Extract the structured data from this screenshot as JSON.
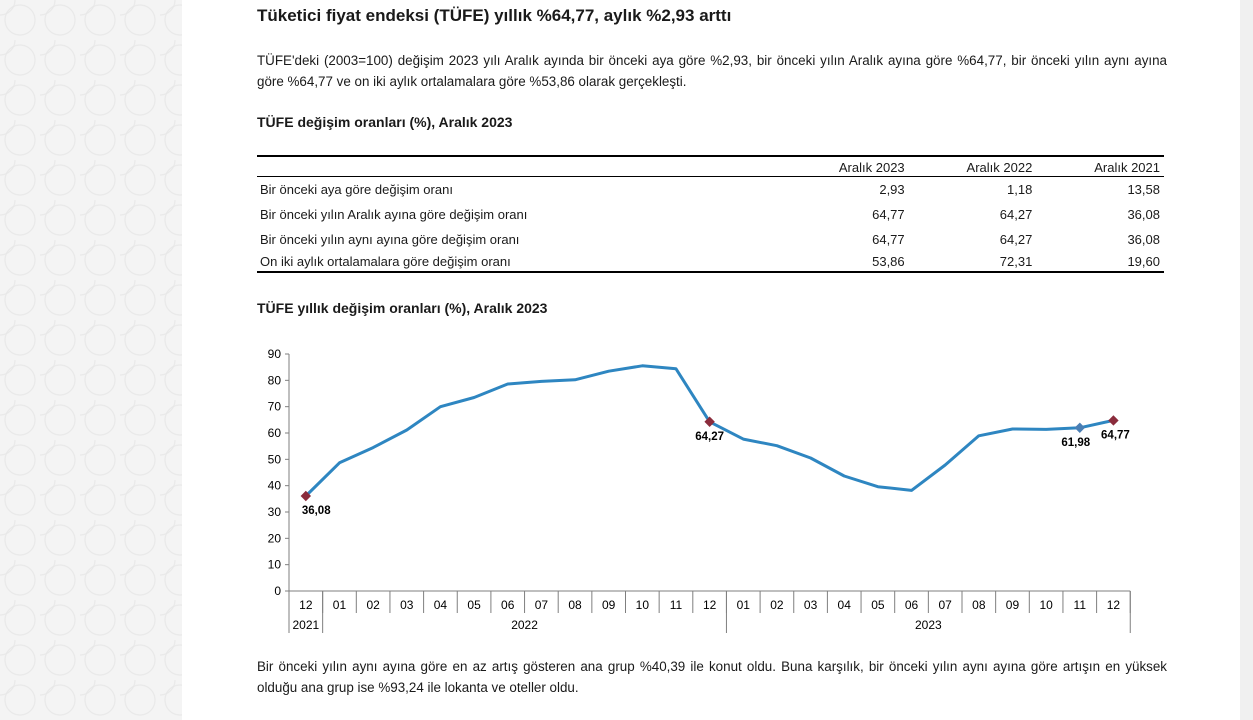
{
  "title": "Tüketici fiyat endeksi (TÜFE) yıllık %64,77, aylık %2,93 arttı",
  "intro": "TÜFE'deki (2003=100) değişim 2023 yılı Aralık ayında bir önceki aya göre %2,93, bir önceki yılın Aralık ayına göre %64,77, bir önceki yılın aynı ayına göre %64,77 ve on iki aylık ortalamalara göre %53,86 olarak gerçekleşti.",
  "table": {
    "title": "TÜFE değişim oranları (%), Aralık 2023",
    "headers": [
      "",
      "Aralık 2023",
      "Aralık 2022",
      "Aralık 2021"
    ],
    "rows": [
      {
        "label": "Bir önceki aya göre değişim oranı",
        "values": [
          "2,93",
          "1,18",
          "13,58"
        ]
      },
      {
        "label": "Bir önceki yılın Aralık ayına göre değişim oranı",
        "values": [
          "64,77",
          "64,27",
          "36,08"
        ]
      },
      {
        "label": "Bir önceki yılın aynı ayına göre değişim oranı",
        "values": [
          "64,77",
          "64,27",
          "36,08"
        ]
      },
      {
        "label": "On iki aylık ortalamalara göre değişim oranı",
        "values": [
          "53,86",
          "72,31",
          "19,60"
        ]
      }
    ]
  },
  "chart_title": "TÜFE yıllık değişim oranları (%), Aralık 2023",
  "chart_data": {
    "type": "line",
    "categories": [
      "12",
      "01",
      "02",
      "03",
      "04",
      "05",
      "06",
      "07",
      "08",
      "09",
      "10",
      "11",
      "12",
      "01",
      "02",
      "03",
      "04",
      "05",
      "06",
      "07",
      "08",
      "09",
      "10",
      "11",
      "12"
    ],
    "year_groups": [
      {
        "label": "2021",
        "start": 0,
        "end": 0
      },
      {
        "label": "2022",
        "start": 1,
        "end": 12
      },
      {
        "label": "2023",
        "start": 13,
        "end": 24
      }
    ],
    "series": [
      {
        "values": [
          36.08,
          48.69,
          54.44,
          61.14,
          69.97,
          73.5,
          78.62,
          79.6,
          80.21,
          83.45,
          85.51,
          84.39,
          64.27,
          57.68,
          55.18,
          50.51,
          43.68,
          39.59,
          38.21,
          47.83,
          58.94,
          61.53,
          61.36,
          61.98,
          64.77
        ],
        "color": "#2e86c1"
      }
    ],
    "ylim": [
      0,
      90
    ],
    "yticks": [
      0,
      10,
      20,
      30,
      40,
      50,
      60,
      70,
      80,
      90
    ],
    "grid": false,
    "highlights": [
      {
        "index": 0,
        "label": "36,08",
        "color": "#8b2c3c"
      },
      {
        "index": 12,
        "label": "64,27",
        "color": "#8b2c3c"
      },
      {
        "index": 23,
        "label": "61,98",
        "color": "#4a7fb5"
      },
      {
        "index": 24,
        "label": "64,77",
        "color": "#8b2c3c"
      }
    ]
  },
  "outro": "Bir önceki yılın aynı ayına göre en az artış gösteren ana grup %40,39 ile konut oldu. Buna karşılık, bir önceki yılın aynı ayına göre artışın en yüksek olduğu ana grup ise %93,24 ile lokanta ve oteller oldu."
}
